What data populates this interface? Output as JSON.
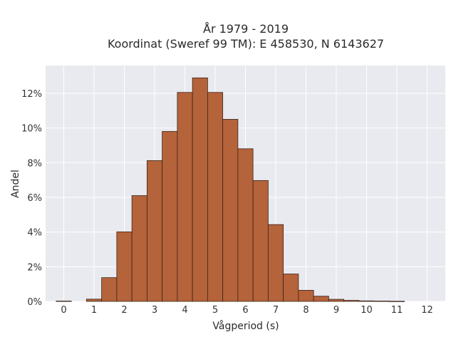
{
  "chart_data": {
    "type": "bar",
    "title_line1": "År 1979 - 2019",
    "title_line2": "Koordinat (Sweref 99 TM): E 458530, N 6143627",
    "xlabel": "Vågperiod (s)",
    "ylabel": "Andel",
    "xlim": [
      -0.6,
      12.6
    ],
    "ylim": [
      0,
      0.136
    ],
    "x_ticks": [
      0,
      1,
      2,
      3,
      4,
      5,
      6,
      7,
      8,
      9,
      10,
      11,
      12
    ],
    "y_ticks": [
      0,
      0.02,
      0.04,
      0.06,
      0.08,
      0.1,
      0.12
    ],
    "y_tick_labels": [
      "0%",
      "2%",
      "4%",
      "6%",
      "8%",
      "10%",
      "12%"
    ],
    "grid": true,
    "bin_width": 0.5,
    "bars": [
      {
        "x": 0.0,
        "value": 0.0002
      },
      {
        "x": 1.0,
        "value": 0.0013
      },
      {
        "x": 1.5,
        "value": 0.0137
      },
      {
        "x": 2.0,
        "value": 0.0401
      },
      {
        "x": 2.5,
        "value": 0.061
      },
      {
        "x": 3.0,
        "value": 0.0812
      },
      {
        "x": 3.5,
        "value": 0.098
      },
      {
        "x": 4.0,
        "value": 0.1205
      },
      {
        "x": 4.5,
        "value": 0.1289
      },
      {
        "x": 5.0,
        "value": 0.1205
      },
      {
        "x": 5.5,
        "value": 0.105
      },
      {
        "x": 6.0,
        "value": 0.088
      },
      {
        "x": 6.5,
        "value": 0.0697
      },
      {
        "x": 7.0,
        "value": 0.0443
      },
      {
        "x": 7.5,
        "value": 0.0158
      },
      {
        "x": 8.0,
        "value": 0.0064
      },
      {
        "x": 8.5,
        "value": 0.003
      },
      {
        "x": 9.0,
        "value": 0.0012
      },
      {
        "x": 9.5,
        "value": 0.0006
      },
      {
        "x": 10.0,
        "value": 0.0003
      },
      {
        "x": 10.5,
        "value": 0.0002
      },
      {
        "x": 11.0,
        "value": 0.0001
      }
    ],
    "colors": {
      "bar_fill": "#b5633a",
      "bar_stroke": "#3a2418",
      "plot_background": "#e9e9f0",
      "grid": "#ffffff"
    }
  }
}
